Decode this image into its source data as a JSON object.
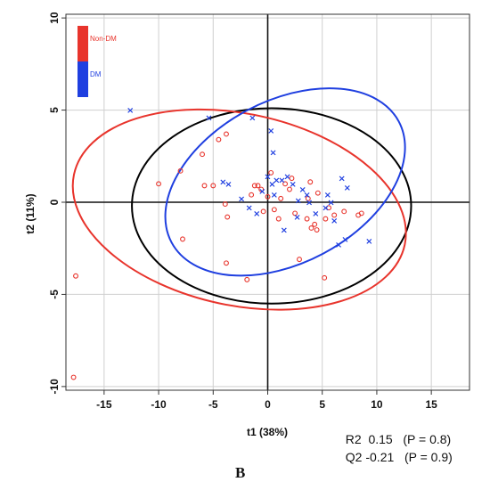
{
  "chart_data": {
    "type": "scatter",
    "title": "",
    "xlabel": "t1 (38%)",
    "ylabel": "t2 (11%)",
    "xlim": [
      -18.5,
      18.5
    ],
    "ylim": [
      -10.2,
      10.2
    ],
    "xticks": [
      -15,
      -10,
      -5,
      0,
      5,
      10,
      15
    ],
    "yticks": [
      -10,
      -5,
      0,
      5,
      10
    ],
    "grid": true,
    "legend_position": "top-left",
    "series": [
      {
        "name": "Non-DM",
        "color": "#e8342c",
        "marker": "circle",
        "points": [
          [
            -17.8,
            -9.5
          ],
          [
            -17.6,
            -4.0
          ],
          [
            -10.0,
            1.0
          ],
          [
            -8.0,
            1.7
          ],
          [
            -7.8,
            -2.0
          ],
          [
            -6.0,
            2.6
          ],
          [
            -5.8,
            0.9
          ],
          [
            -5.0,
            0.9
          ],
          [
            -4.5,
            3.4
          ],
          [
            -3.8,
            3.7
          ],
          [
            -3.9,
            -0.1
          ],
          [
            -3.7,
            -0.8
          ],
          [
            -3.8,
            -3.3
          ],
          [
            -1.9,
            -4.2
          ],
          [
            -1.5,
            0.4
          ],
          [
            -1.2,
            0.9
          ],
          [
            -0.9,
            0.9
          ],
          [
            -0.6,
            0.7
          ],
          [
            -0.4,
            -0.5
          ],
          [
            0.3,
            1.6
          ],
          [
            0.6,
            -0.4
          ],
          [
            1.0,
            -0.9
          ],
          [
            1.2,
            0.2
          ],
          [
            1.6,
            1.0
          ],
          [
            2.0,
            0.7
          ],
          [
            2.2,
            1.3
          ],
          [
            2.5,
            -0.6
          ],
          [
            2.9,
            -3.1
          ],
          [
            3.6,
            -0.9
          ],
          [
            4.0,
            -1.4
          ],
          [
            3.9,
            1.1
          ],
          [
            4.3,
            -1.2
          ],
          [
            4.5,
            -1.5
          ],
          [
            4.6,
            0.5
          ],
          [
            5.2,
            -4.1
          ],
          [
            5.3,
            -0.9
          ],
          [
            5.6,
            -0.3
          ],
          [
            6.1,
            -0.7
          ],
          [
            7.0,
            -0.5
          ],
          [
            8.3,
            -0.7
          ],
          [
            8.6,
            -0.6
          ],
          [
            3.7,
            0.2
          ],
          [
            0.0,
            0.3
          ]
        ]
      },
      {
        "name": "DM",
        "color": "#1f3fe0",
        "marker": "x",
        "points": [
          [
            -12.6,
            5.0
          ],
          [
            -5.4,
            4.6
          ],
          [
            -4.1,
            1.1
          ],
          [
            -3.6,
            1.0
          ],
          [
            -2.4,
            0.2
          ],
          [
            -1.7,
            -0.3
          ],
          [
            -1.4,
            4.6
          ],
          [
            0.3,
            3.9
          ],
          [
            0.5,
            2.7
          ],
          [
            -0.5,
            0.6
          ],
          [
            0.0,
            1.4
          ],
          [
            0.4,
            1.0
          ],
          [
            0.6,
            0.4
          ],
          [
            0.8,
            1.2
          ],
          [
            1.3,
            1.2
          ],
          [
            1.8,
            1.4
          ],
          [
            2.3,
            1.0
          ],
          [
            2.8,
            0.1
          ],
          [
            3.2,
            0.7
          ],
          [
            3.6,
            0.4
          ],
          [
            3.8,
            0.0
          ],
          [
            4.4,
            -0.6
          ],
          [
            5.3,
            -0.3
          ],
          [
            5.5,
            0.4
          ],
          [
            5.8,
            0.0
          ],
          [
            6.1,
            -1.0
          ],
          [
            6.5,
            -2.3
          ],
          [
            7.1,
            -2.0
          ],
          [
            7.3,
            0.8
          ],
          [
            6.8,
            1.3
          ],
          [
            9.3,
            -2.1
          ],
          [
            2.7,
            -0.8
          ],
          [
            1.5,
            -1.5
          ],
          [
            -1.0,
            -0.6
          ]
        ]
      }
    ],
    "ellipses": [
      {
        "name": "overall",
        "color": "#000000",
        "cx": 0.35,
        "cy": -0.2,
        "rx": 12.8,
        "ry": 5.3,
        "angle_deg": 0
      },
      {
        "name": "Non-DM",
        "color": "#e8342c",
        "cx": -2.6,
        "cy": -0.4,
        "rx": 15.5,
        "ry": 5.2,
        "angle_deg": 12
      },
      {
        "name": "DM",
        "color": "#1f3fe0",
        "cx": 1.6,
        "cy": 1.1,
        "rx": 11.8,
        "ry": 4.4,
        "angle_deg": -28
      }
    ]
  },
  "stats": {
    "r2_label": "R2",
    "r2_value": "0.15",
    "r2_p": "(P = 0.8)",
    "q2_label": "Q2",
    "q2_value": "-0.21",
    "q2_p": "(P = 0.9)"
  },
  "panel_letter": "B"
}
